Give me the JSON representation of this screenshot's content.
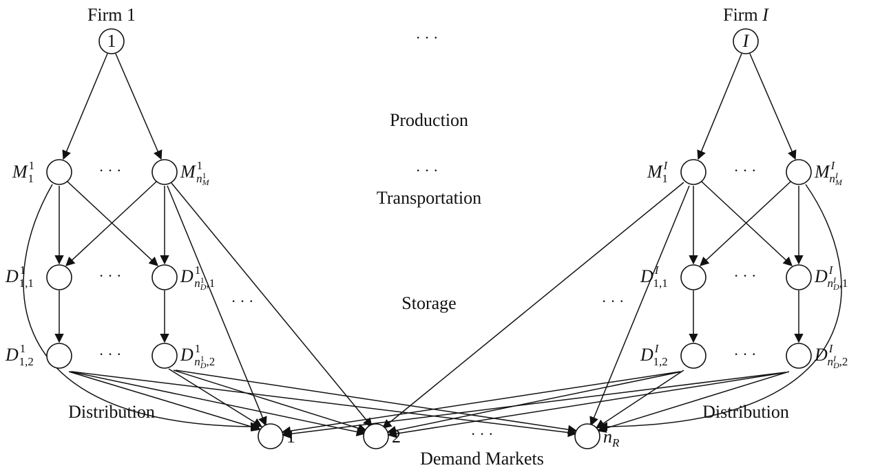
{
  "firms": {
    "left": {
      "title": "Firm 1",
      "node_label": "1"
    },
    "right": {
      "title_prefix": "Firm ",
      "title_var": "I",
      "node_label": "I"
    }
  },
  "stages": {
    "production": "Production",
    "transportation": "Transportation",
    "storage": "Storage",
    "distribution_left": "Distribution",
    "distribution_right": "Distribution",
    "demand_markets": "Demand Markets"
  },
  "demand_nodes": [
    {
      "id": "r1",
      "label": "1"
    },
    {
      "id": "r2",
      "label": "2"
    },
    {
      "id": "rn",
      "label": "n",
      "sub": "R"
    }
  ],
  "left_labels": {
    "m1": {
      "base": "M",
      "sup": "1",
      "sub": "1"
    },
    "m2": {
      "base": "M",
      "sup": "1",
      "sub": "n",
      "subsup": "1",
      "subsub": "M"
    },
    "d11": {
      "base": "D",
      "sup": "1",
      "sub": "1,1"
    },
    "d12": {
      "base": "D",
      "sup": "1",
      "sub1": "n",
      "subsup": "1",
      "subsub": "D",
      "sub2": ",1"
    },
    "d21": {
      "base": "D",
      "sup": "1",
      "sub": "1,2"
    },
    "d22": {
      "base": "D",
      "sup": "1",
      "sub1": "n",
      "subsup": "1",
      "subsub": "D",
      "sub2": ",2"
    }
  },
  "right_labels": {
    "m1": {
      "base": "M",
      "sup": "I",
      "sub": "1"
    },
    "m2": {
      "base": "M",
      "sup": "I",
      "sub": "n",
      "subsup": "I",
      "subsub": "M"
    },
    "d11": {
      "base": "D",
      "sup": "I",
      "sub": "1,1"
    },
    "d12": {
      "base": "D",
      "sup": "I",
      "sub1": "n",
      "subsup": "I",
      "subsub": "D",
      "sub2": ",1"
    },
    "d21": {
      "base": "D",
      "sup": "I",
      "sub": "1,2"
    },
    "d22": {
      "base": "D",
      "sup": "I",
      "sub1": "n",
      "subsup": "I",
      "subsub": "D",
      "sub2": ",2"
    }
  },
  "ellipsis": "· · ·"
}
